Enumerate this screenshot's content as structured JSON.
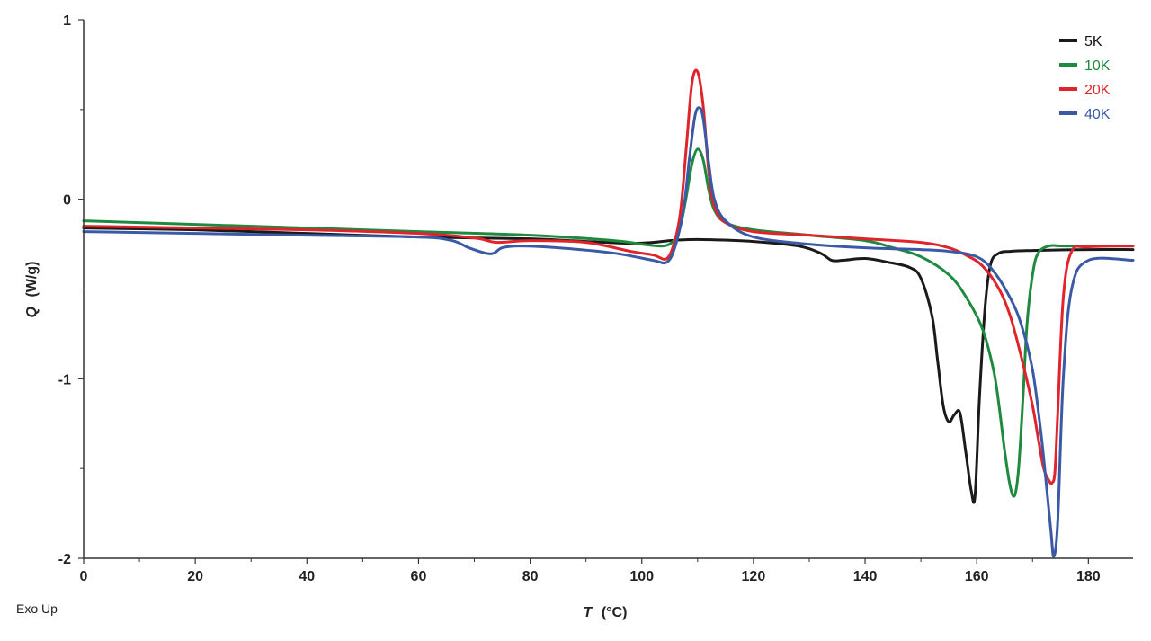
{
  "chart_data": {
    "type": "line",
    "title": "",
    "note": "Exo Up",
    "xlabel": {
      "symbol": "T",
      "unit": "(°C)"
    },
    "ylabel": {
      "symbol": "Q",
      "unit": "(W/g)"
    },
    "xlim": [
      0,
      188
    ],
    "ylim": [
      -2,
      1
    ],
    "xticks": [
      0,
      20,
      40,
      60,
      80,
      100,
      120,
      140,
      160,
      180
    ],
    "xminor_step": 10,
    "yticks": [
      -2,
      -1,
      0,
      1
    ],
    "yminor_step": 0.5,
    "grid": false,
    "legend_position": "top-right",
    "series": [
      {
        "name": "5K",
        "color": "#1a1a1a",
        "x": [
          0,
          20,
          40,
          60,
          80,
          90,
          98,
          102,
          105,
          108,
          112,
          120,
          128,
          132,
          134,
          136,
          140,
          144,
          148,
          150,
          152,
          153,
          154,
          155,
          156,
          157,
          158,
          159,
          159.7,
          160.5,
          161.5,
          162.5,
          164,
          166,
          170,
          180,
          188
        ],
        "y": [
          -0.16,
          -0.17,
          -0.19,
          -0.21,
          -0.22,
          -0.235,
          -0.245,
          -0.24,
          -0.23,
          -0.225,
          -0.225,
          -0.235,
          -0.26,
          -0.3,
          -0.34,
          -0.34,
          -0.33,
          -0.35,
          -0.38,
          -0.44,
          -0.65,
          -0.9,
          -1.15,
          -1.24,
          -1.2,
          -1.19,
          -1.4,
          -1.62,
          -1.65,
          -1.1,
          -0.6,
          -0.36,
          -0.3,
          -0.29,
          -0.285,
          -0.28,
          -0.28
        ]
      },
      {
        "name": "10K",
        "color": "#1e8a3f",
        "x": [
          0,
          20,
          40,
          60,
          80,
          95,
          100,
          104,
          106,
          107,
          108,
          109,
          110,
          111,
          112,
          113,
          115,
          120,
          130,
          140,
          145,
          150,
          155,
          158,
          161,
          163,
          164,
          165,
          166,
          166.8,
          167.5,
          168.3,
          169,
          170,
          171,
          173,
          176,
          188
        ],
        "y": [
          -0.12,
          -0.14,
          -0.16,
          -0.18,
          -0.2,
          -0.23,
          -0.25,
          -0.26,
          -0.22,
          -0.14,
          0.02,
          0.2,
          0.28,
          0.22,
          0.05,
          -0.06,
          -0.13,
          -0.17,
          -0.2,
          -0.23,
          -0.27,
          -0.32,
          -0.42,
          -0.54,
          -0.72,
          -0.95,
          -1.15,
          -1.4,
          -1.6,
          -1.65,
          -1.5,
          -1.1,
          -0.7,
          -0.42,
          -0.3,
          -0.26,
          -0.26,
          -0.26
        ]
      },
      {
        "name": "20K",
        "color": "#e0242c",
        "x": [
          0,
          20,
          40,
          60,
          70,
          74,
          80,
          90,
          98,
          102,
          104.5,
          106,
          107,
          108,
          109,
          110,
          111,
          112,
          113,
          115,
          120,
          130,
          140,
          150,
          155,
          158,
          161,
          164,
          166,
          168,
          170,
          171,
          172,
          173,
          173.5,
          174,
          174.5,
          175.5,
          177,
          180,
          188
        ],
        "y": [
          -0.15,
          -0.16,
          -0.17,
          -0.19,
          -0.215,
          -0.24,
          -0.23,
          -0.24,
          -0.29,
          -0.31,
          -0.33,
          -0.22,
          -0.05,
          0.3,
          0.65,
          0.71,
          0.52,
          0.15,
          -0.04,
          -0.13,
          -0.18,
          -0.2,
          -0.22,
          -0.24,
          -0.27,
          -0.31,
          -0.37,
          -0.5,
          -0.65,
          -0.88,
          -1.15,
          -1.33,
          -1.5,
          -1.57,
          -1.58,
          -1.52,
          -1.2,
          -0.55,
          -0.29,
          -0.265,
          -0.26
        ]
      },
      {
        "name": "40K",
        "color": "#3b5aa5",
        "x": [
          0,
          20,
          40,
          60,
          66,
          69,
          72,
          73.5,
          75,
          78,
          85,
          95,
          102,
          104.5,
          106,
          107.5,
          108.5,
          109.5,
          110.3,
          111,
          112,
          113,
          115,
          120,
          130,
          140,
          150,
          155,
          160,
          163,
          166,
          168,
          170,
          171.5,
          172.5,
          173.3,
          173.8,
          174.5,
          175.5,
          177,
          180,
          188
        ],
        "y": [
          -0.18,
          -0.19,
          -0.2,
          -0.21,
          -0.23,
          -0.27,
          -0.3,
          -0.3,
          -0.27,
          -0.26,
          -0.27,
          -0.3,
          -0.34,
          -0.35,
          -0.26,
          -0.05,
          0.22,
          0.46,
          0.51,
          0.45,
          0.2,
          0.0,
          -0.12,
          -0.21,
          -0.25,
          -0.27,
          -0.28,
          -0.29,
          -0.32,
          -0.4,
          -0.55,
          -0.7,
          -0.95,
          -1.3,
          -1.6,
          -1.85,
          -1.99,
          -1.8,
          -1.0,
          -0.5,
          -0.34,
          -0.34
        ]
      }
    ]
  }
}
